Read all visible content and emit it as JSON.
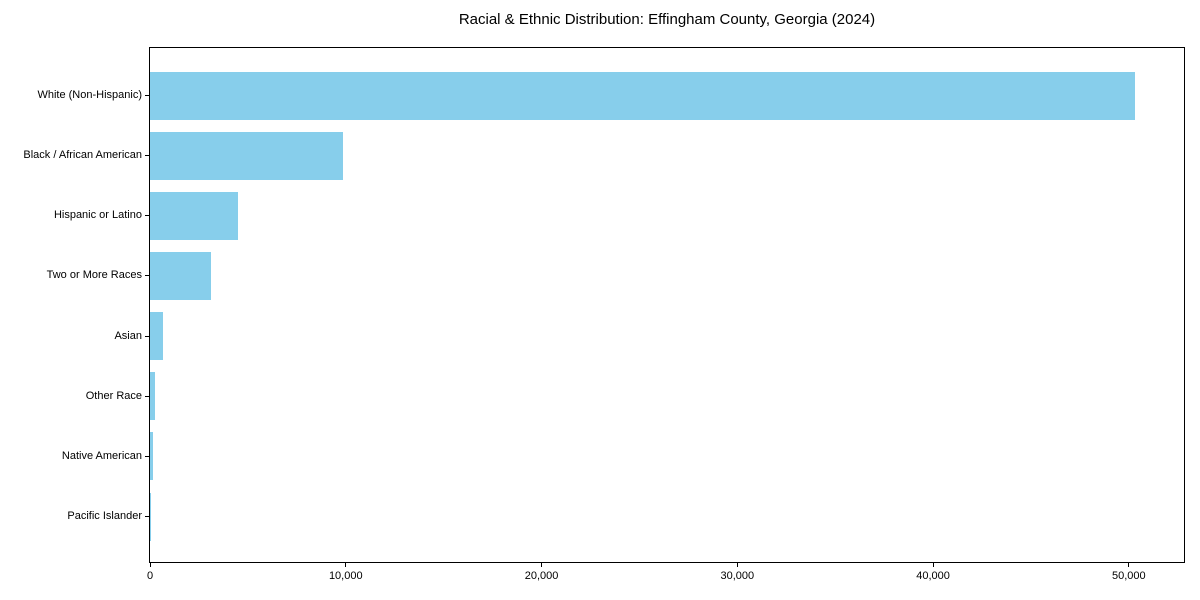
{
  "figure": {
    "background": "#ffffff",
    "frame_color": "#000000"
  },
  "chart_data": {
    "type": "bar",
    "orientation": "horizontal",
    "title": "Racial & Ethnic Distribution: Effingham County, Georgia (2024)",
    "xlabel": "",
    "ylabel": "",
    "categories": [
      "White (Non-Hispanic)",
      "Black / African American",
      "Hispanic or Latino",
      "Two or More Races",
      "Asian",
      "Other Race",
      "Native American",
      "Pacific Islander"
    ],
    "values": [
      50400,
      9900,
      4500,
      3100,
      650,
      260,
      150,
      40
    ],
    "bar_color": "#87CEEB",
    "xlim": [
      0,
      52920
    ],
    "x_ticks": [
      0,
      10000,
      20000,
      30000,
      40000,
      50000
    ],
    "x_tick_labels": [
      "0",
      "10,000",
      "20,000",
      "30,000",
      "40,000",
      "50,000"
    ],
    "grid": false,
    "legend": false
  }
}
